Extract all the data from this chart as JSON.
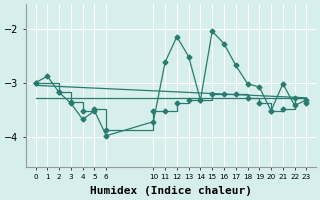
{
  "bg_color": "#d6efec",
  "line_color": "#2a7a6f",
  "grid_color": "#ffffff",
  "xlabel": "Humidex (Indice chaleur)",
  "xlabel_fontsize": 8,
  "yticks": [
    -4,
    -3,
    -2
  ],
  "ylim": [
    -4.55,
    -1.55
  ],
  "xlim": [
    -0.8,
    23.8
  ],
  "xtick_positions": [
    0,
    1,
    2,
    3,
    4,
    5,
    6,
    10,
    11,
    12,
    13,
    14,
    15,
    16,
    17,
    18,
    19,
    20,
    21,
    22,
    23
  ],
  "xtick_labels": [
    "0",
    "1",
    "2",
    "3",
    "4",
    "5",
    "6",
    "10",
    "11",
    "12",
    "13",
    "14",
    "15",
    "16",
    "17",
    "18",
    "19",
    "20",
    "21",
    "22",
    "23"
  ],
  "line1_x": [
    0,
    1,
    2,
    3,
    4,
    5,
    6,
    10,
    11,
    12,
    13,
    14,
    15,
    16,
    17,
    18,
    19,
    20,
    21,
    22,
    23
  ],
  "line1_y": [
    -3.0,
    -2.88,
    -3.18,
    -3.38,
    -3.68,
    -3.52,
    -3.98,
    -3.72,
    -2.62,
    -2.15,
    -2.52,
    -3.32,
    -2.05,
    -2.28,
    -2.68,
    -3.02,
    -3.08,
    -3.52,
    -3.02,
    -3.42,
    -3.32
  ],
  "line2_x": [
    0,
    2,
    3,
    4,
    5,
    6,
    10,
    11,
    12,
    13,
    14,
    15,
    16,
    17,
    18,
    19,
    20,
    21,
    22,
    23
  ],
  "line2_y": [
    -3.0,
    -3.18,
    -3.35,
    -3.52,
    -3.48,
    -3.88,
    -3.52,
    -3.52,
    -3.38,
    -3.32,
    -3.32,
    -3.2,
    -3.2,
    -3.2,
    -3.28,
    -3.38,
    -3.52,
    -3.48,
    -3.28,
    -3.38
  ],
  "line3_x": [
    0,
    23
  ],
  "line3_y": [
    -3.05,
    -3.28
  ],
  "line4_x": [
    0,
    23
  ],
  "line4_y": [
    -3.28,
    -3.28
  ]
}
